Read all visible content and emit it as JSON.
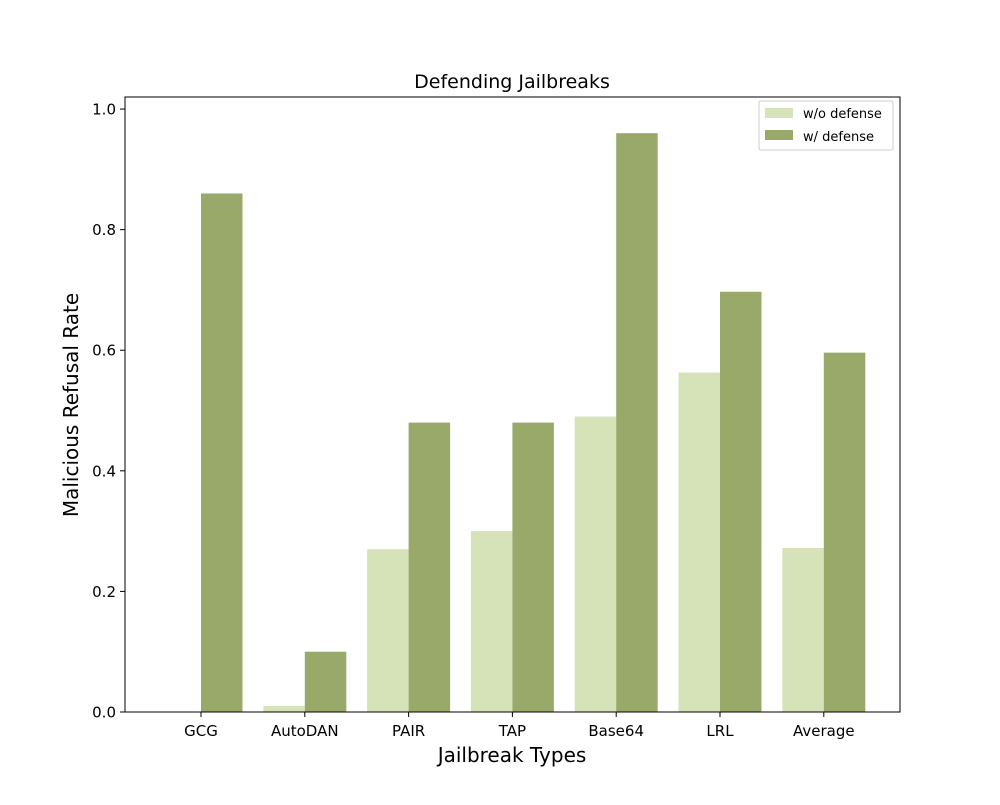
{
  "chart_data": {
    "type": "bar",
    "title": "Defending Jailbreaks",
    "xlabel": "Jailbreak Types",
    "ylabel": "Malicious Refusal Rate",
    "categories": [
      "GCG",
      "AutoDAN",
      "PAIR",
      "TAP",
      "Base64",
      "LRL",
      "Average"
    ],
    "series": [
      {
        "name": "w/o defense",
        "color": "#d6e3b8",
        "values": [
          0.0,
          0.01,
          0.27,
          0.3,
          0.49,
          0.563,
          0.272
        ]
      },
      {
        "name": "w/ defense",
        "color": "#98a96a",
        "values": [
          0.86,
          0.1,
          0.48,
          0.48,
          0.96,
          0.697,
          0.596
        ]
      }
    ],
    "ylim": [
      0,
      1.02
    ],
    "yticks": [
      "0.0",
      "0.2",
      "0.4",
      "0.6",
      "0.8",
      "1.0"
    ],
    "legend_position": "top-right",
    "grid": false
  }
}
